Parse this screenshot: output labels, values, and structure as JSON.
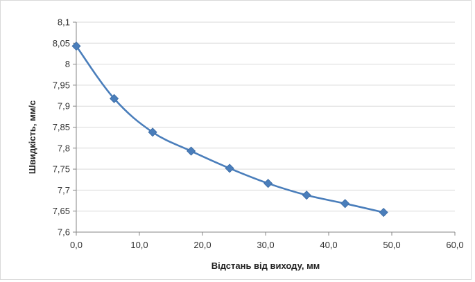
{
  "chart_data": {
    "type": "scatter",
    "title": "",
    "xlabel": "Відстань від виходу, мм",
    "ylabel": "Швидкість, мм/с",
    "xlim": [
      0,
      60
    ],
    "ylim": [
      7.6,
      8.1
    ],
    "xticks": [
      "0,0",
      "10,0",
      "20,0",
      "30,0",
      "40,0",
      "50,0",
      "60,0"
    ],
    "yticks": [
      "7,6",
      "7,65",
      "7,7",
      "7,75",
      "7,8",
      "7,85",
      "7,9",
      "7,95",
      "8",
      "8,05",
      "8,1"
    ],
    "grid": true,
    "legend": "none",
    "series": [
      {
        "x": [
          0.0,
          6.0,
          12.1,
          18.2,
          24.3,
          30.4,
          36.5,
          42.6,
          48.7
        ],
        "y": [
          8.043,
          7.918,
          7.838,
          7.793,
          7.752,
          7.716,
          7.688,
          7.668,
          7.647
        ],
        "color": "#4a7ebb",
        "marker": "diamond",
        "smooth": true
      }
    ]
  }
}
